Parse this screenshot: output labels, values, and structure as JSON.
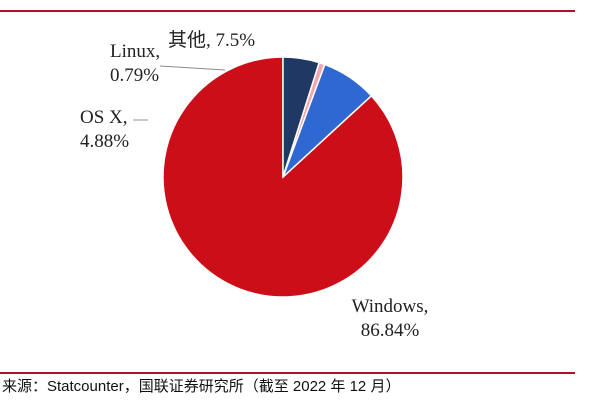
{
  "chart_data": {
    "type": "pie",
    "title": "",
    "slices": [
      {
        "label": "Windows",
        "value": 86.84,
        "display": [
          "Windows,",
          "86.84%"
        ],
        "color": "#cc0e18"
      },
      {
        "label": "OS X",
        "value": 4.88,
        "display": [
          "OS X,",
          "4.88%"
        ],
        "color": "#1f3864"
      },
      {
        "label": "Linux",
        "value": 0.79,
        "display": [
          "Linux,",
          "0.79%"
        ],
        "color": "#f4a6b0"
      },
      {
        "label": "其他",
        "value": 7.5,
        "display": [
          "其他, 7.5%"
        ],
        "color": "#2e68d0"
      }
    ]
  },
  "source": "来源：Statcounter，国联证券研究所（截至 2022 年 12 月）",
  "colors": {
    "rule": "#b0102a",
    "leader": "#8c8c8c"
  }
}
